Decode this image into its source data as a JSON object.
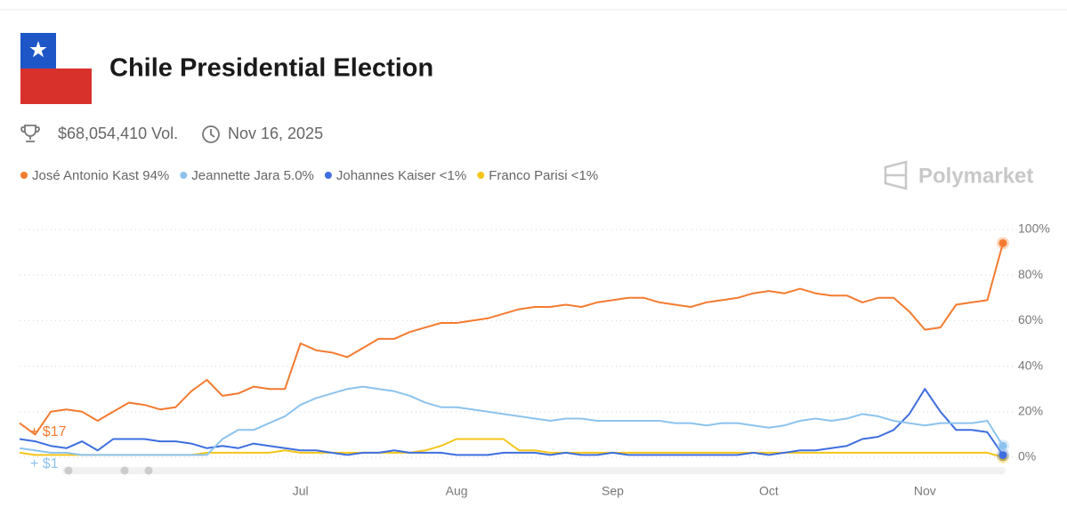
{
  "header": {
    "title": "Chile Presidential Election",
    "volume": "$68,054,410 Vol.",
    "date": "Nov 16, 2025",
    "brand": "Polymarket"
  },
  "chart_data": {
    "type": "line",
    "x": [
      null,
      null,
      null,
      null,
      null,
      null,
      null,
      null,
      null,
      null,
      null,
      null,
      null,
      null,
      null,
      null,
      null,
      null,
      "Jul",
      null,
      null,
      null,
      null,
      null,
      null,
      null,
      null,
      null,
      "Aug",
      null,
      null,
      null,
      null,
      null,
      null,
      null,
      null,
      null,
      "Sep",
      null,
      null,
      null,
      null,
      null,
      null,
      null,
      null,
      null,
      "Oct",
      null,
      null,
      null,
      null,
      null,
      null,
      null,
      null,
      null,
      "Nov",
      null,
      null,
      null,
      null,
      null
    ],
    "series": [
      {
        "name": "José Antonio Kast 94%",
        "color": "#f47b30",
        "values": [
          15,
          10,
          20,
          21,
          20,
          16,
          20,
          24,
          23,
          21,
          22,
          29,
          34,
          27,
          28,
          31,
          30,
          30,
          50,
          47,
          46,
          44,
          48,
          52,
          52,
          55,
          57,
          59,
          59,
          60,
          61,
          63,
          65,
          66,
          66,
          67,
          66,
          68,
          69,
          70,
          70,
          68,
          67,
          66,
          68,
          69,
          70,
          72,
          73,
          72,
          74,
          72,
          71,
          71,
          68,
          70,
          70,
          64,
          56,
          57,
          67,
          68,
          69,
          94
        ]
      },
      {
        "name": "Jeannette Jara 5.0%",
        "color": "#8cc3ee",
        "values": [
          4,
          3,
          2,
          2,
          1,
          1,
          1,
          1,
          1,
          1,
          1,
          1,
          1,
          8,
          12,
          12,
          15,
          18,
          23,
          26,
          28,
          30,
          31,
          30,
          29,
          27,
          24,
          22,
          22,
          21,
          20,
          19,
          18,
          17,
          16,
          17,
          17,
          16,
          16,
          16,
          16,
          16,
          15,
          15,
          14,
          15,
          15,
          14,
          13,
          14,
          16,
          17,
          16,
          17,
          19,
          18,
          16,
          15,
          14,
          15,
          15,
          15,
          16,
          5
        ]
      },
      {
        "name": "Johannes Kaiser <1%",
        "color": "#3e6ee0",
        "values": [
          8,
          7,
          5,
          4,
          7,
          3,
          8,
          8,
          8,
          7,
          7,
          6,
          4,
          5,
          4,
          6,
          5,
          4,
          3,
          3,
          2,
          1,
          2,
          2,
          3,
          2,
          2,
          2,
          1,
          1,
          1,
          2,
          2,
          2,
          1,
          2,
          1,
          1,
          2,
          1,
          1,
          1,
          1,
          1,
          1,
          1,
          1,
          2,
          1,
          2,
          3,
          3,
          4,
          5,
          8,
          9,
          12,
          19,
          30,
          20,
          12,
          12,
          11,
          1
        ]
      },
      {
        "name": "Franco Parisi <1%",
        "color": "#f5c518",
        "values": [
          2,
          1,
          1,
          1,
          1,
          1,
          1,
          1,
          1,
          1,
          1,
          1,
          2,
          2,
          2,
          2,
          2,
          3,
          2,
          2,
          2,
          2,
          2,
          2,
          2,
          2,
          3,
          5,
          8,
          8,
          8,
          8,
          3,
          3,
          2,
          2,
          2,
          2,
          2,
          2,
          2,
          2,
          2,
          2,
          2,
          2,
          2,
          2,
          2,
          2,
          2,
          2,
          2,
          2,
          2,
          2,
          2,
          2,
          2,
          2,
          2,
          2,
          2,
          0
        ]
      }
    ],
    "annotations": [
      {
        "text": "+ $17",
        "color": "#f47b30"
      },
      {
        "text": "+ $1",
        "color": "#8cc3ee"
      }
    ],
    "ylim": [
      0,
      100
    ],
    "yticks": [
      {
        "value": 0,
        "label": "0%"
      },
      {
        "value": 20,
        "label": "20%"
      },
      {
        "value": 40,
        "label": "40%"
      },
      {
        "value": 60,
        "label": "60%"
      },
      {
        "value": 80,
        "label": "80%"
      },
      {
        "value": 100,
        "label": "100%"
      }
    ],
    "grid": true
  }
}
